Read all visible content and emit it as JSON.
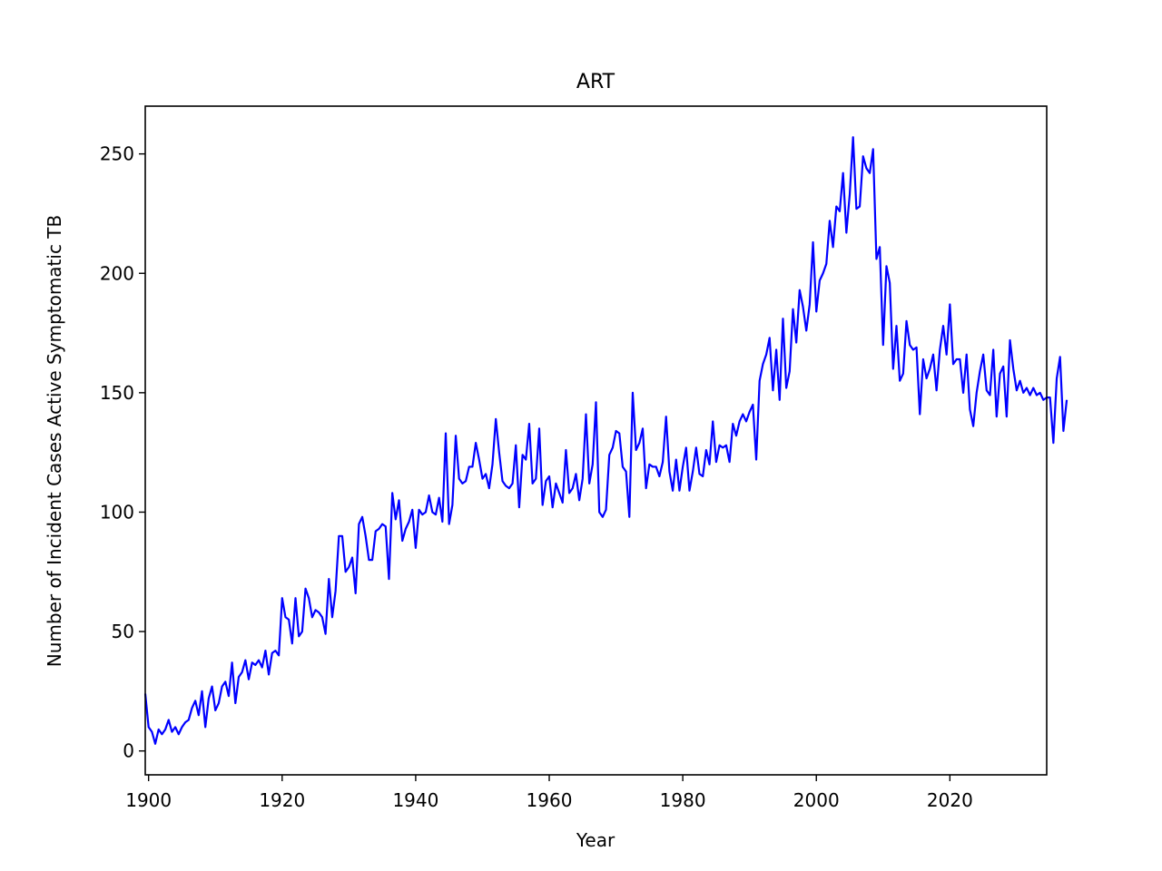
{
  "chart_data": {
    "type": "line",
    "title": "ART",
    "xlabel": "Year",
    "ylabel": "Number of Incident Cases Active Symptomatic TB",
    "xlim": [
      1899.5,
      2034.5
    ],
    "ylim": [
      -10,
      270
    ],
    "xticks": [
      1900,
      1920,
      1940,
      1960,
      1980,
      2000,
      2020
    ],
    "yticks": [
      0,
      50,
      100,
      150,
      200,
      250
    ],
    "grid": false,
    "line_color": "#0000ff",
    "x_start": 1899.5,
    "x_step": 0.5,
    "values": [
      24,
      10,
      8,
      3,
      9,
      7,
      9,
      13,
      8,
      10,
      7,
      10,
      12,
      13,
      18,
      21,
      15,
      25,
      10,
      22,
      27,
      17,
      20,
      27,
      29,
      23,
      37,
      20,
      31,
      33,
      38,
      30,
      37,
      36,
      38,
      35,
      42,
      32,
      41,
      42,
      40,
      64,
      56,
      55,
      45,
      64,
      48,
      50,
      68,
      64,
      56,
      59,
      58,
      56,
      49,
      72,
      56,
      67,
      90,
      90,
      75,
      77,
      81,
      66,
      95,
      98,
      90,
      80,
      80,
      92,
      93,
      95,
      94,
      72,
      108,
      97,
      105,
      88,
      93,
      96,
      101,
      85,
      101,
      99,
      100,
      107,
      100,
      99,
      106,
      96,
      133,
      95,
      103,
      132,
      114,
      112,
      113,
      119,
      119,
      129,
      122,
      114,
      116,
      110,
      120,
      139,
      125,
      113,
      111,
      110,
      112,
      128,
      102,
      124,
      122,
      137,
      112,
      114,
      135,
      103,
      113,
      115,
      102,
      112,
      108,
      104,
      126,
      108,
      110,
      116,
      105,
      114,
      141,
      112,
      120,
      146,
      100,
      98,
      101,
      124,
      127,
      134,
      133,
      119,
      117,
      98,
      150,
      126,
      129,
      135,
      110,
      120,
      119,
      119,
      115,
      121,
      140,
      117,
      109,
      122,
      109,
      119,
      127,
      109,
      117,
      127,
      116,
      115,
      126,
      120,
      138,
      121,
      128,
      127,
      128,
      121,
      137,
      132,
      138,
      141,
      138,
      142,
      145,
      122,
      155,
      162,
      166,
      173,
      151,
      168,
      147,
      181,
      152,
      159,
      185,
      171,
      193,
      186,
      176,
      187,
      213,
      184,
      197,
      200,
      204,
      222,
      211,
      228,
      226,
      242,
      217,
      233,
      257,
      227,
      228,
      249,
      244,
      242,
      252,
      206,
      211,
      170,
      203,
      196,
      160,
      178,
      155,
      158,
      180,
      170,
      168,
      169,
      141,
      164,
      156,
      160,
      166,
      151,
      168,
      178,
      166,
      187,
      162,
      164,
      164,
      150,
      166,
      143,
      136,
      150,
      159,
      166,
      151,
      149,
      168,
      140,
      158,
      161,
      140,
      172,
      160,
      151,
      155,
      150,
      152,
      149,
      152,
      149,
      150,
      147,
      148,
      148,
      129,
      156,
      165,
      134,
      147
    ]
  }
}
